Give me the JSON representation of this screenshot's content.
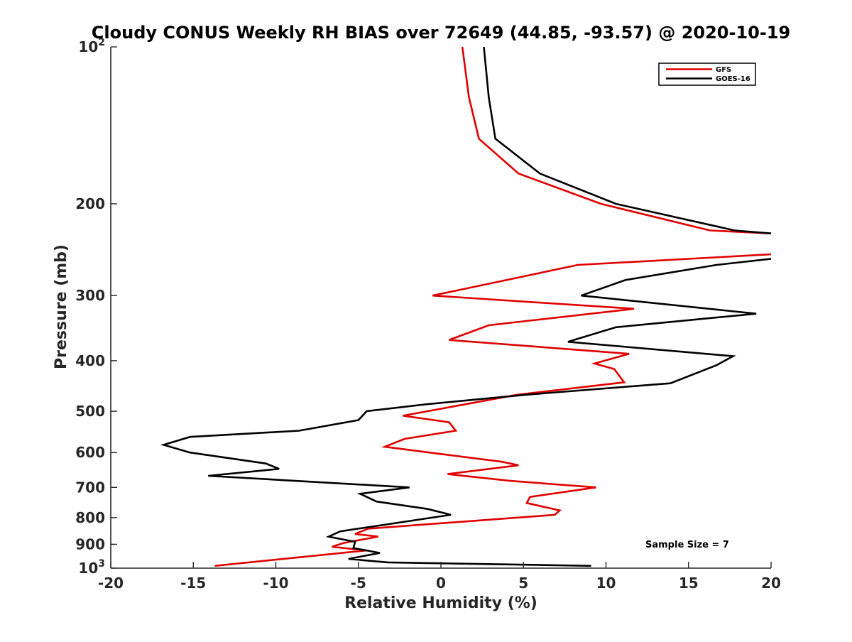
{
  "chart_data": {
    "type": "line",
    "title": "Cloudy CONUS Weekly RH BIAS over 72649 (44.85, -93.57) @ 2020-10-19",
    "xlabel": "Relative Humidity (%)",
    "ylabel": "Pressure (mb)",
    "xlim": [
      -20,
      20
    ],
    "ylim": [
      100,
      1000
    ],
    "yscale": "log",
    "y_reversed": true,
    "grid": false,
    "legend_position": "top-right",
    "x_ticks": [
      -20,
      -15,
      -10,
      -5,
      0,
      5,
      10,
      15,
      20
    ],
    "y_ticks": [
      {
        "value": 100,
        "base": "10",
        "exp": "2"
      },
      {
        "value": 200,
        "label": "200"
      },
      {
        "value": 300,
        "label": "300"
      },
      {
        "value": 400,
        "label": "400"
      },
      {
        "value": 500,
        "label": "500"
      },
      {
        "value": 600,
        "label": "600"
      },
      {
        "value": 700,
        "label": "700"
      },
      {
        "value": 800,
        "label": "800"
      },
      {
        "value": 900,
        "label": "900"
      },
      {
        "value": 1000,
        "base": "10",
        "exp": "3"
      }
    ],
    "annotation": "Sample Size = 7",
    "series": [
      {
        "name": "GFS",
        "color": "#e00000",
        "points": [
          [
            1.3,
            100
          ],
          [
            1.7,
            125
          ],
          [
            2.3,
            150
          ],
          [
            4.7,
            175
          ],
          [
            9.7,
            200
          ],
          [
            16.3,
            225
          ],
          [
            20,
            228
          ],
          [
            null,
            null
          ],
          [
            20,
            250
          ],
          [
            8.3,
            262
          ],
          [
            -0.5,
            300
          ],
          [
            11.7,
            318
          ],
          [
            2.9,
            342
          ],
          [
            0.5,
            365
          ],
          [
            11.4,
            388
          ],
          [
            9.3,
            405
          ],
          [
            10.5,
            415
          ],
          [
            11.1,
            440
          ],
          [
            4.6,
            465
          ],
          [
            -2.3,
            510
          ],
          [
            0.5,
            525
          ],
          [
            0.9,
            545
          ],
          [
            -2.2,
            565
          ],
          [
            -3.4,
            585
          ],
          [
            -0.7,
            600
          ],
          [
            3.7,
            625
          ],
          [
            4.7,
            635
          ],
          [
            0.4,
            660
          ],
          [
            4.2,
            680
          ],
          [
            9.4,
            700
          ],
          [
            5.4,
            730
          ],
          [
            5.2,
            750
          ],
          [
            7.2,
            775
          ],
          [
            6.9,
            790
          ],
          [
            -4.4,
            840
          ],
          [
            -5.2,
            860
          ],
          [
            -3.8,
            870
          ],
          [
            -5.9,
            895
          ],
          [
            -6.6,
            910
          ],
          [
            -4.5,
            925
          ],
          [
            -13.7,
            990
          ]
        ]
      },
      {
        "name": "GOES-16",
        "color": "#000000",
        "points": [
          [
            2.6,
            100
          ],
          [
            2.9,
            125
          ],
          [
            3.3,
            150
          ],
          [
            6,
            175
          ],
          [
            10.6,
            200
          ],
          [
            17.8,
            225
          ],
          [
            20,
            228
          ],
          [
            null,
            null
          ],
          [
            20,
            255
          ],
          [
            16.7,
            262
          ],
          [
            11.2,
            280
          ],
          [
            8.5,
            300
          ],
          [
            19.1,
            325
          ],
          [
            10.6,
            345
          ],
          [
            7.7,
            368
          ],
          [
            17.7,
            392
          ],
          [
            16.7,
            408
          ],
          [
            13.9,
            442
          ],
          [
            5.1,
            465
          ],
          [
            -0.9,
            485
          ],
          [
            -4.5,
            500
          ],
          [
            -5,
            520
          ],
          [
            -8.6,
            545
          ],
          [
            -15.2,
            560
          ],
          [
            -16.8,
            580
          ],
          [
            -15.2,
            600
          ],
          [
            -10.6,
            630
          ],
          [
            -9.8,
            645
          ],
          [
            -14.1,
            665
          ],
          [
            -1.9,
            700
          ],
          [
            -4.9,
            720
          ],
          [
            -3.9,
            745
          ],
          [
            -0.8,
            770
          ],
          [
            0.6,
            790
          ],
          [
            -6.1,
            850
          ],
          [
            -6.8,
            870
          ],
          [
            -5.2,
            890
          ],
          [
            -5.3,
            915
          ],
          [
            -3.7,
            935
          ],
          [
            -5.6,
            960
          ],
          [
            -3.2,
            975
          ],
          [
            9.1,
            990
          ]
        ]
      }
    ]
  }
}
